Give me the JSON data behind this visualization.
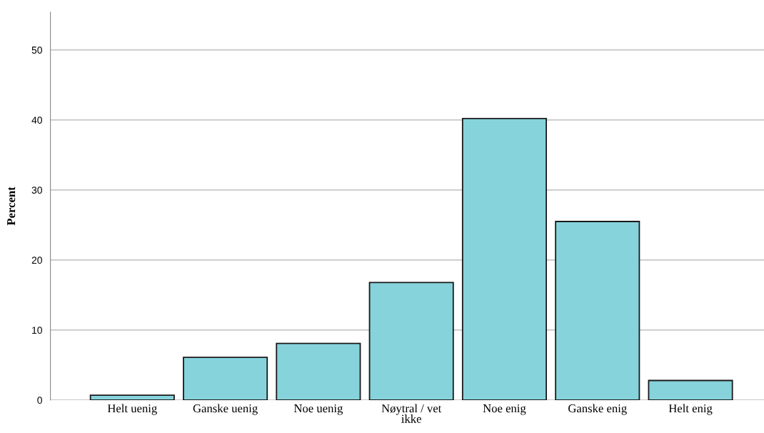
{
  "chart_data": {
    "type": "bar",
    "ylabel": "Percent",
    "categories": [
      "Helt uenig",
      "Ganske uenig",
      "Noe uenig",
      "Nøytral / vet\nikke",
      "Noe enig",
      "Ganske enig",
      "Helt enig"
    ],
    "values": [
      0.7,
      6.1,
      8.1,
      16.8,
      40.2,
      25.5,
      2.8
    ],
    "color": "#86d3dc",
    "ylim": [
      0,
      55.4
    ],
    "yticks": [
      0,
      10,
      20,
      30,
      40,
      50
    ],
    "grid": "y"
  }
}
